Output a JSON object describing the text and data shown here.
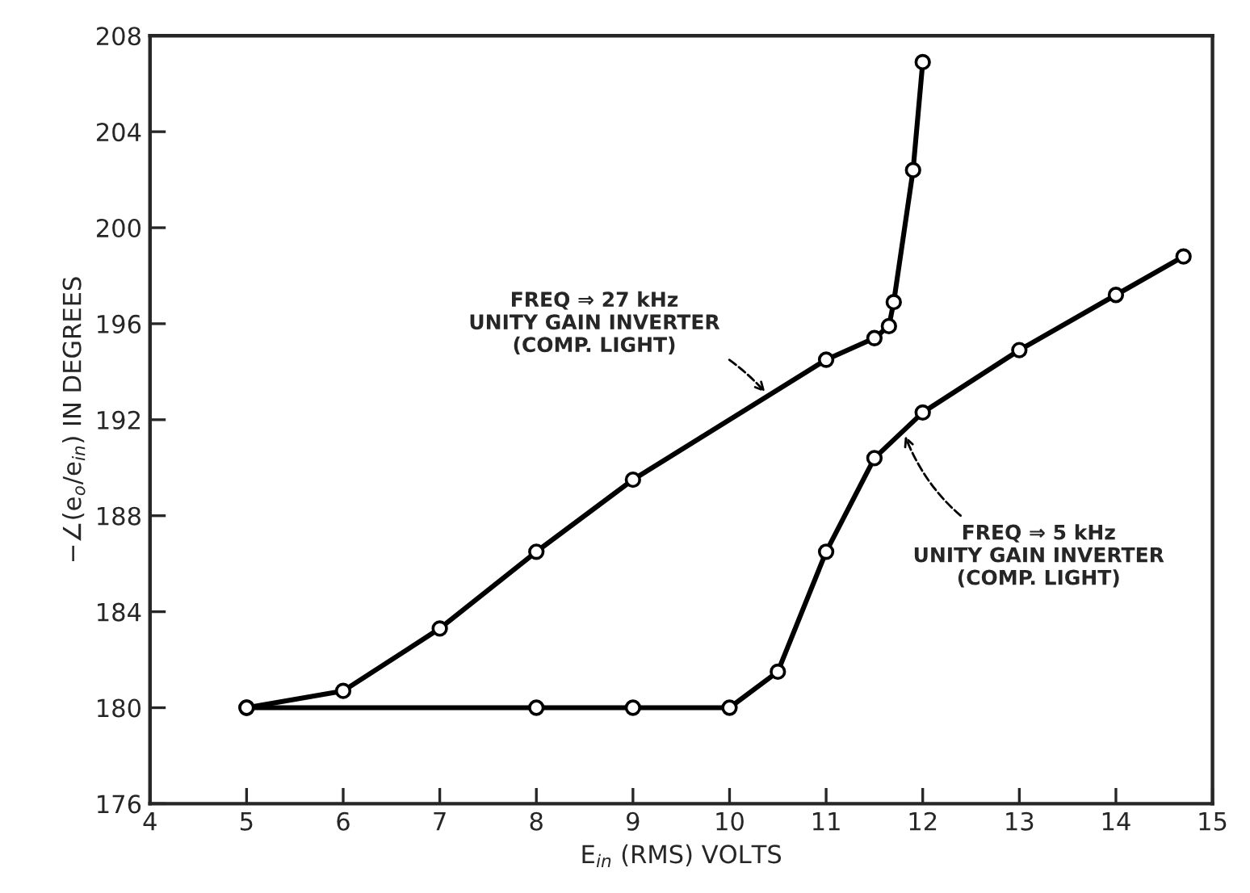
{
  "chart_data": {
    "type": "line",
    "xlabel": "E$_{in}$ (RMS) VOLTS",
    "ylabel": "−∠(e$_{o}$/e$_{in}$) IN DEGREES",
    "xlim": [
      4,
      15
    ],
    "xticks": [
      4,
      5,
      6,
      7,
      8,
      9,
      10,
      11,
      12,
      13,
      14,
      15
    ],
    "ylim": [
      176,
      208
    ],
    "yticks": [
      176,
      180,
      184,
      188,
      192,
      196,
      200,
      204,
      208
    ],
    "grid": false,
    "legend": false,
    "marker": "circle",
    "line_style": "solid",
    "series": [
      {
        "color": "#000000",
        "x": [
          5,
          6,
          7,
          8,
          9,
          11,
          11.5,
          11.65,
          11.7,
          11.9,
          12.0
        ],
        "values": [
          180,
          180.7,
          183.3,
          186.5,
          189.5,
          194.5,
          195.4,
          195.9,
          196.9,
          202.4,
          206.9
        ]
      },
      {
        "color": "#000000",
        "x": [
          5,
          8,
          9,
          10,
          10.5,
          11,
          11.5,
          12,
          13,
          14,
          14.7
        ],
        "values": [
          180,
          180,
          180,
          180,
          181.5,
          186.5,
          190.4,
          192.3,
          194.9,
          197.2,
          198.8
        ]
      }
    ],
    "annotations": [
      {
        "text": "FREQ ⇒ 27 kHz\nUNITY GAIN INVERTER\n(COMP. LIGHT)",
        "x": 10.4,
        "y": 193.0
      },
      {
        "text": "FREQ ⇒ 5 kHz\nUNITY GAIN INVERTER\n(COMP. LIGHT)",
        "x": 11.8,
        "y": 191.5
      }
    ]
  }
}
